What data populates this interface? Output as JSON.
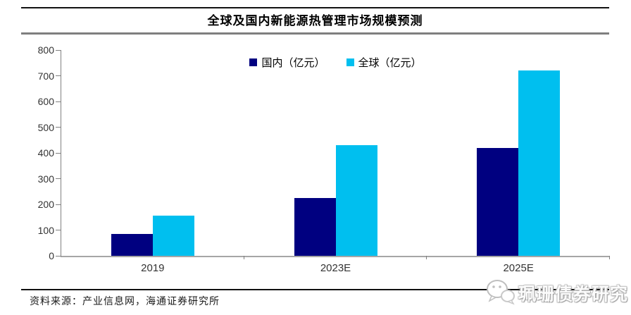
{
  "page": {
    "title": "全球及国内新能源热管理市场规模预测",
    "source_note": "资料来源：产业信息网，海通证券研究所",
    "watermark_text": "珮珊债券研究"
  },
  "chart_data": {
    "type": "bar",
    "title": "全球及国内新能源热管理市场规模预测",
    "categories": [
      "2019",
      "2023E",
      "2025E"
    ],
    "series": [
      {
        "name": "国内（亿元）",
        "color": "#000080",
        "values": [
          85,
          225,
          420
        ]
      },
      {
        "name": "全球（亿元）",
        "color": "#00bfef",
        "values": [
          155,
          430,
          720
        ]
      }
    ],
    "ylim": [
      0,
      800
    ],
    "ytick_step": 100,
    "grid": false,
    "legend_position": "top-center",
    "axis_colors": {
      "y_axis": "#808080",
      "x_axis": "#a6a6a6",
      "tick_text": "#333333"
    }
  }
}
